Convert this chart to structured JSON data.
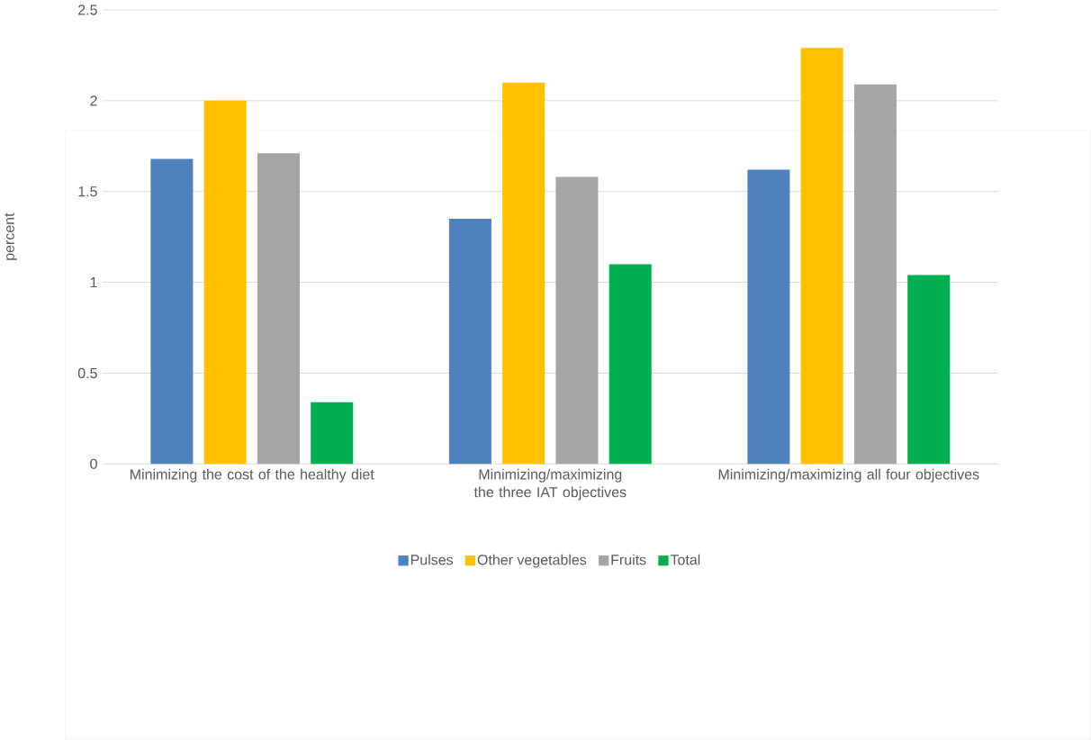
{
  "chart_data": {
    "type": "bar",
    "ylabel": "percent",
    "categories": [
      "Minimizing the cost of the healthy diet",
      "Minimizing/maximizing the three IAT objectives",
      "Minimizing/maximizing all four objectives"
    ],
    "series": [
      {
        "name": "Pulses",
        "color": "#4f81bd",
        "values": [
          1.68,
          1.35,
          1.62
        ]
      },
      {
        "name": "Other vegetables",
        "color": "#ffc000",
        "values": [
          2.0,
          2.1,
          2.29
        ]
      },
      {
        "name": "Fruits",
        "color": "#a5a5a5",
        "values": [
          1.71,
          1.58,
          2.09
        ]
      },
      {
        "name": "Total",
        "color": "#00b050",
        "values": [
          0.34,
          1.1,
          1.04
        ]
      }
    ],
    "ylim": [
      0,
      2.5
    ],
    "yticks": [
      0,
      0.5,
      1,
      1.5,
      2,
      2.5
    ],
    "grid": "y",
    "legend": "bottom"
  }
}
